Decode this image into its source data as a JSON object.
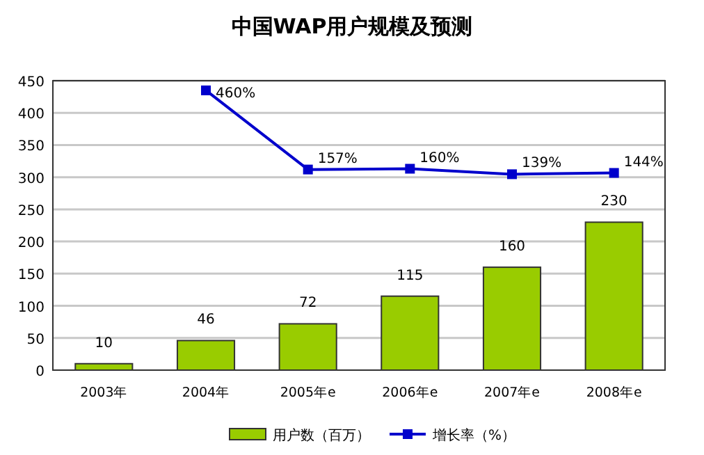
{
  "chart_data": {
    "type": "bar",
    "title": "中国WAP用户规模及预测",
    "categories": [
      "2003年",
      "2004年",
      "2005年e",
      "2006年e",
      "2007年e",
      "2008年e"
    ],
    "series": [
      {
        "name": "用户数（百万）",
        "color": "#99cc00",
        "values": [
          10,
          46,
          72,
          115,
          160,
          230
        ],
        "value_labels": [
          "10",
          "46",
          "72",
          "115",
          "160",
          "230"
        ]
      },
      {
        "name": "增长率（%）",
        "type": "line",
        "axis": "y2",
        "color": "#0000cc",
        "values": [
          null,
          460,
          157,
          160,
          139,
          144
        ],
        "value_labels": [
          null,
          "460%",
          "157%",
          "160%",
          "139%",
          "144%"
        ]
      }
    ],
    "ylim": [
      0,
      450
    ],
    "yticks": [
      0,
      50,
      100,
      150,
      200,
      250,
      300,
      350,
      400,
      450
    ],
    "y2lim": [
      -611,
      497
    ],
    "grid": "y",
    "legend": "bottom",
    "marker": "square",
    "line_style": "solid"
  }
}
